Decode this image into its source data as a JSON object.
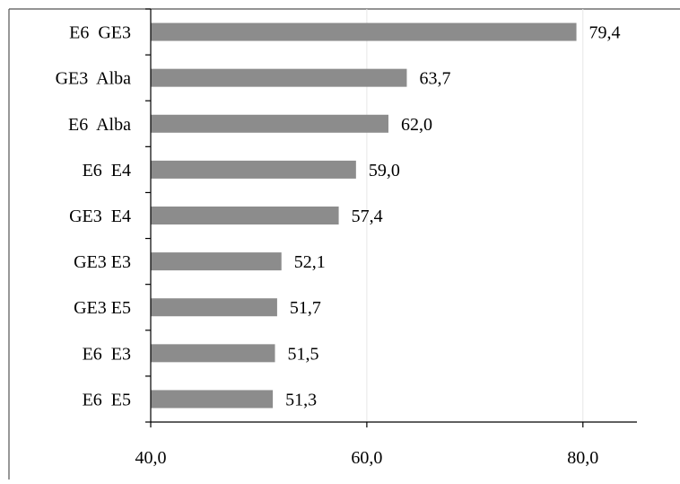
{
  "chart_data": {
    "type": "bar",
    "orientation": "horizontal",
    "categories": [
      "E6  GE3",
      "GE3  Alba",
      "E6  Alba",
      "E6  E4",
      "GE3  E4",
      "GE3 E3",
      "GE3 E5",
      "E6  E3",
      "E6  E5"
    ],
    "values": [
      79.4,
      63.7,
      62.0,
      59.0,
      57.4,
      52.1,
      51.7,
      51.5,
      51.3
    ],
    "value_labels": [
      "79,4",
      "63,7",
      "62,0",
      "59,0",
      "57,4",
      "52,1",
      "51,7",
      "51,5",
      "51,3"
    ],
    "xlim": [
      40,
      85
    ],
    "xticks": [
      40,
      60,
      80
    ],
    "xtick_labels": [
      "40,0",
      "60,0",
      "80,0"
    ],
    "grid": "vertical gridlines at 60 and 80",
    "title": "",
    "xlabel": "",
    "ylabel": "",
    "colors": {
      "bar": "#8c8c8c",
      "axis": "#000000",
      "grid": "#e6e6e6",
      "frame": "#555555",
      "text": "#000000"
    }
  }
}
